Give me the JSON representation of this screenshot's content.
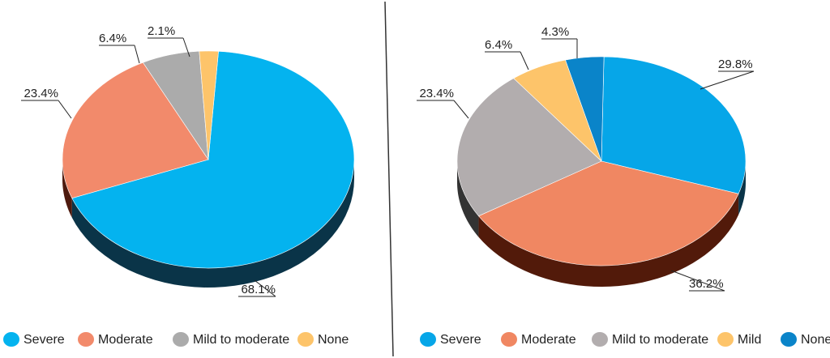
{
  "chart_data": [
    {
      "type": "pie",
      "title": "",
      "slices": [
        {
          "label": "Severe",
          "value": 68.1,
          "display": "68.1%",
          "color": "#04B3EF",
          "side": "#0A3448"
        },
        {
          "label": "Moderate",
          "value": 23.4,
          "display": "23.4%",
          "color": "#F28A6B",
          "side": "#4E1A0E"
        },
        {
          "label": "Mild to moderate",
          "value": 6.4,
          "display": "6.4%",
          "color": "#ABABAB",
          "side": "#3A3A3A"
        },
        {
          "label": "None",
          "value": 2.1,
          "display": "2.1%",
          "color": "#FDC46A",
          "side": "#6A4A16"
        }
      ],
      "legend_position": "bottom"
    },
    {
      "type": "pie",
      "title": "",
      "slices": [
        {
          "label": "Severe",
          "value": 29.8,
          "display": "29.8%",
          "color": "#06A6E8",
          "side": "#0A3448"
        },
        {
          "label": "Moderate",
          "value": 36.2,
          "display": "36.2%",
          "color": "#F08762",
          "side": "#521A0A"
        },
        {
          "label": "Mild to moderate",
          "value": 23.4,
          "display": "23.4%",
          "color": "#B2ADAE",
          "side": "#333333"
        },
        {
          "label": "Mild",
          "value": 6.4,
          "display": "6.4%",
          "color": "#FDC46A",
          "side": "#6A4A16"
        },
        {
          "label": "None",
          "value": 4.3,
          "display": "4.3%",
          "color": "#0A84C9",
          "side": "#05304A"
        }
      ],
      "legend_position": "bottom"
    }
  ]
}
